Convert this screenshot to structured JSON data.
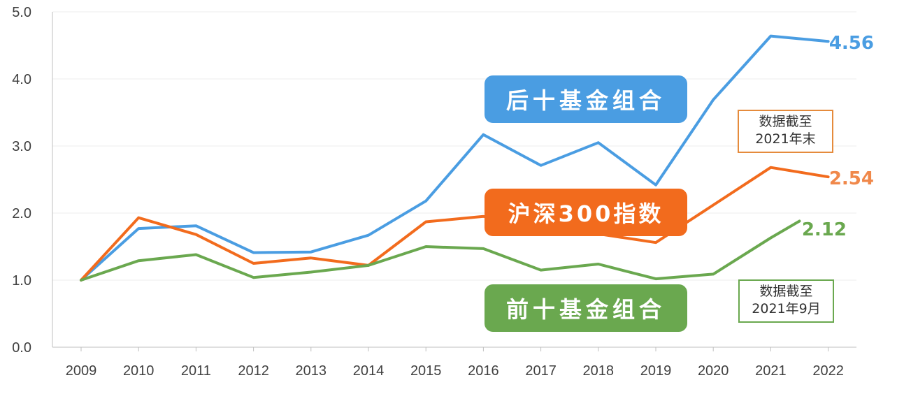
{
  "chart_data": {
    "type": "line",
    "x": [
      "2009",
      "2010",
      "2011",
      "2012",
      "2013",
      "2014",
      "2015",
      "2016",
      "2017",
      "2018",
      "2019",
      "2020",
      "2021",
      "2022"
    ],
    "ylim": [
      0,
      5
    ],
    "yticks": [
      "0.0",
      "1.0",
      "2.0",
      "3.0",
      "4.0",
      "5.0"
    ],
    "grid": true,
    "series": [
      {
        "name": "后十基金组合",
        "color": "#4a9de2",
        "values": [
          1.0,
          1.77,
          1.81,
          1.41,
          1.42,
          1.67,
          2.18,
          3.17,
          2.71,
          3.05,
          2.42,
          3.69,
          4.64,
          4.56
        ],
        "end_label": "4.56"
      },
      {
        "name": "沪深300指数",
        "color": "#f26b1d",
        "values": [
          1.0,
          1.93,
          1.68,
          1.25,
          1.33,
          1.22,
          1.87,
          1.95,
          null,
          null,
          1.56,
          2.12,
          2.68,
          2.54
        ],
        "end_label": "2.54"
      },
      {
        "name": "前十基金组合",
        "color": "#6aa84f",
        "values": [
          1.0,
          1.29,
          1.38,
          1.04,
          1.12,
          1.22,
          1.5,
          1.47,
          1.15,
          1.24,
          1.02,
          1.09,
          1.63,
          null
        ],
        "extra_point": {
          "x": 12.5,
          "y": 1.88
        },
        "end_label": "2.12"
      }
    ],
    "notes": [
      {
        "line1": "数据截至",
        "line2": "2021年末",
        "color": "#e58b3c"
      },
      {
        "line1": "数据截至",
        "line2": "2021年9月",
        "color": "#6aa84f"
      }
    ]
  }
}
